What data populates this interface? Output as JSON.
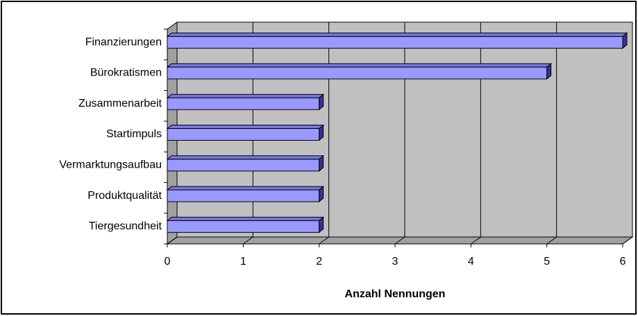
{
  "chart_data": {
    "type": "bar3d-horizontal",
    "categories": [
      "Finanzierungen",
      "Bürokratismen",
      "Zusammenarbeit",
      "Startimpuls",
      "Vermarktungsaufbau",
      "Produktqualität",
      "Tiergesundheit"
    ],
    "values": [
      6,
      5,
      2,
      2,
      2,
      2,
      2
    ],
    "color": "#9999ff",
    "xlabel": "Anzahl Nennungen",
    "xlim": [
      0,
      6
    ],
    "xticks": [
      0,
      1,
      2,
      3,
      4,
      5,
      6
    ],
    "grid": true
  }
}
